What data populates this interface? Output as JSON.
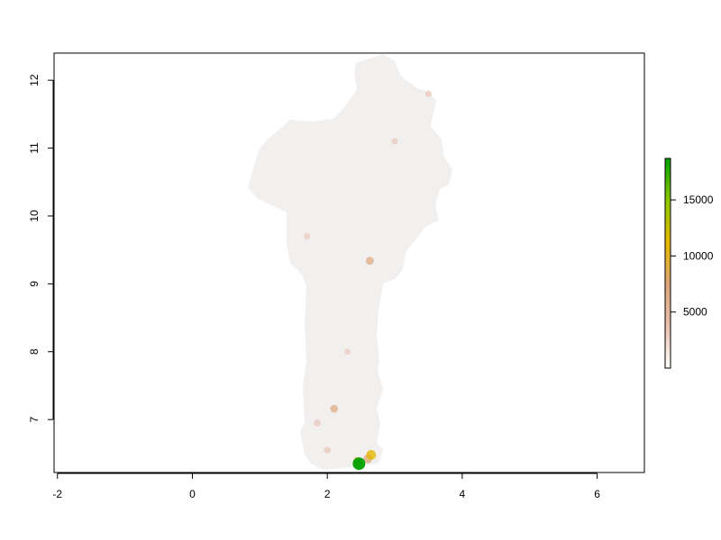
{
  "map": {
    "x_axis": {
      "ticks": [
        -2,
        0,
        2,
        4,
        6
      ],
      "range": [
        -2.05,
        6.7
      ]
    },
    "y_axis": {
      "ticks": [
        7,
        8,
        9,
        10,
        11,
        12
      ],
      "range": [
        6.22,
        12.4
      ]
    },
    "base_color": "#f2efef",
    "border_color": "#000000",
    "hotspots": [
      {
        "x": 2.63,
        "y": 9.34,
        "level": 0.35
      },
      {
        "x": 2.1,
        "y": 7.16,
        "level": 0.3
      },
      {
        "x": 1.85,
        "y": 6.95,
        "level": 0.2
      },
      {
        "x": 2.45,
        "y": 6.38,
        "level": 0.5
      },
      {
        "x": 2.6,
        "y": 6.42,
        "level": 0.45
      },
      {
        "x": 2.47,
        "y": 6.35,
        "level": 1.0
      },
      {
        "x": 2.65,
        "y": 6.48,
        "level": 0.6
      },
      {
        "x": 3.5,
        "y": 11.8,
        "level": 0.15
      },
      {
        "x": 3.0,
        "y": 11.1,
        "level": 0.12
      },
      {
        "x": 1.7,
        "y": 9.7,
        "level": 0.12
      },
      {
        "x": 2.3,
        "y": 8.0,
        "level": 0.1
      },
      {
        "x": 2.0,
        "y": 6.55,
        "level": 0.2
      }
    ]
  },
  "legend": {
    "ticks": [
      5000,
      10000,
      15000
    ],
    "tick_labels": [
      "5000",
      "10000",
      "15000"
    ],
    "range": [
      0,
      18700
    ],
    "colors": [
      "#ffffff",
      "#e8c0b0",
      "#dca478",
      "#e6b800",
      "#8cc800",
      "#00a000"
    ]
  }
}
